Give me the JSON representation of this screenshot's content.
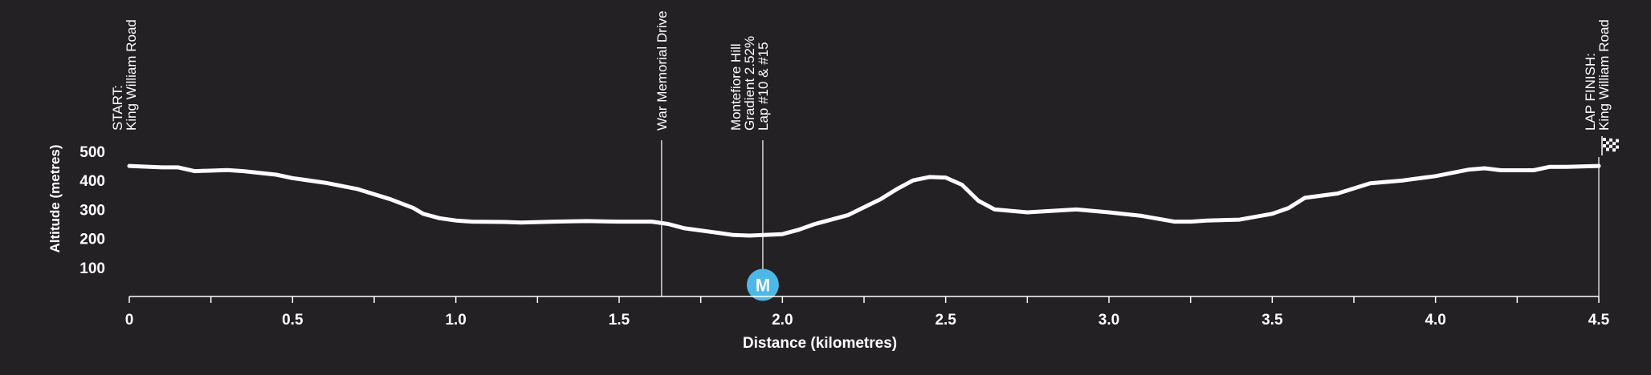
{
  "colors": {
    "background": "#232123",
    "line": "#ffffff",
    "marker": "#4db8e8"
  },
  "chart_data": {
    "type": "line",
    "xlabel": "Distance (kilometres)",
    "ylabel": "Altitude (metres)",
    "xlim": [
      0,
      4.5
    ],
    "ylim": [
      0,
      500
    ],
    "x_ticks": [
      "0",
      "0.5",
      "1.0",
      "1.5",
      "2.0",
      "2.5",
      "3.0",
      "3.5",
      "4.0",
      "4.5"
    ],
    "y_ticks": [
      "100",
      "200",
      "300",
      "400",
      "500"
    ],
    "x": [
      0,
      0.1,
      0.15,
      0.2,
      0.3,
      0.35,
      0.45,
      0.5,
      0.6,
      0.7,
      0.8,
      0.87,
      0.9,
      0.95,
      1.0,
      1.05,
      1.15,
      1.2,
      1.3,
      1.4,
      1.5,
      1.6,
      1.65,
      1.7,
      1.8,
      1.85,
      1.9,
      2.0,
      2.05,
      2.1,
      2.15,
      2.2,
      2.3,
      2.35,
      2.4,
      2.45,
      2.5,
      2.55,
      2.6,
      2.65,
      2.75,
      2.9,
      3.0,
      3.1,
      3.2,
      3.25,
      3.3,
      3.4,
      3.5,
      3.55,
      3.6,
      3.7,
      3.8,
      3.9,
      4.0,
      4.1,
      4.15,
      4.2,
      4.3,
      4.35,
      4.4,
      4.5
    ],
    "y": [
      450,
      445,
      445,
      432,
      436,
      432,
      420,
      408,
      392,
      370,
      335,
      305,
      285,
      270,
      262,
      258,
      257,
      255,
      258,
      260,
      258,
      258,
      250,
      235,
      220,
      212,
      210,
      215,
      230,
      250,
      265,
      280,
      335,
      370,
      400,
      412,
      410,
      385,
      330,
      300,
      290,
      300,
      290,
      278,
      258,
      258,
      262,
      265,
      285,
      305,
      340,
      355,
      390,
      400,
      415,
      437,
      442,
      435,
      435,
      447,
      447,
      450
    ],
    "markers": [
      {
        "x": 1.94,
        "label": "M"
      }
    ],
    "annotations": [
      {
        "x": 0,
        "lines": [
          "START:",
          "King William Road"
        ]
      },
      {
        "x": 1.63,
        "lines": [
          "War Memorial Drive"
        ]
      },
      {
        "x": 1.94,
        "lines": [
          "Montefiore Hill",
          "Gradient 2.52%",
          "Lap #10 & #15"
        ]
      },
      {
        "x": 4.5,
        "lines": [
          "LAP FINISH:",
          "King William Road"
        ]
      }
    ]
  }
}
